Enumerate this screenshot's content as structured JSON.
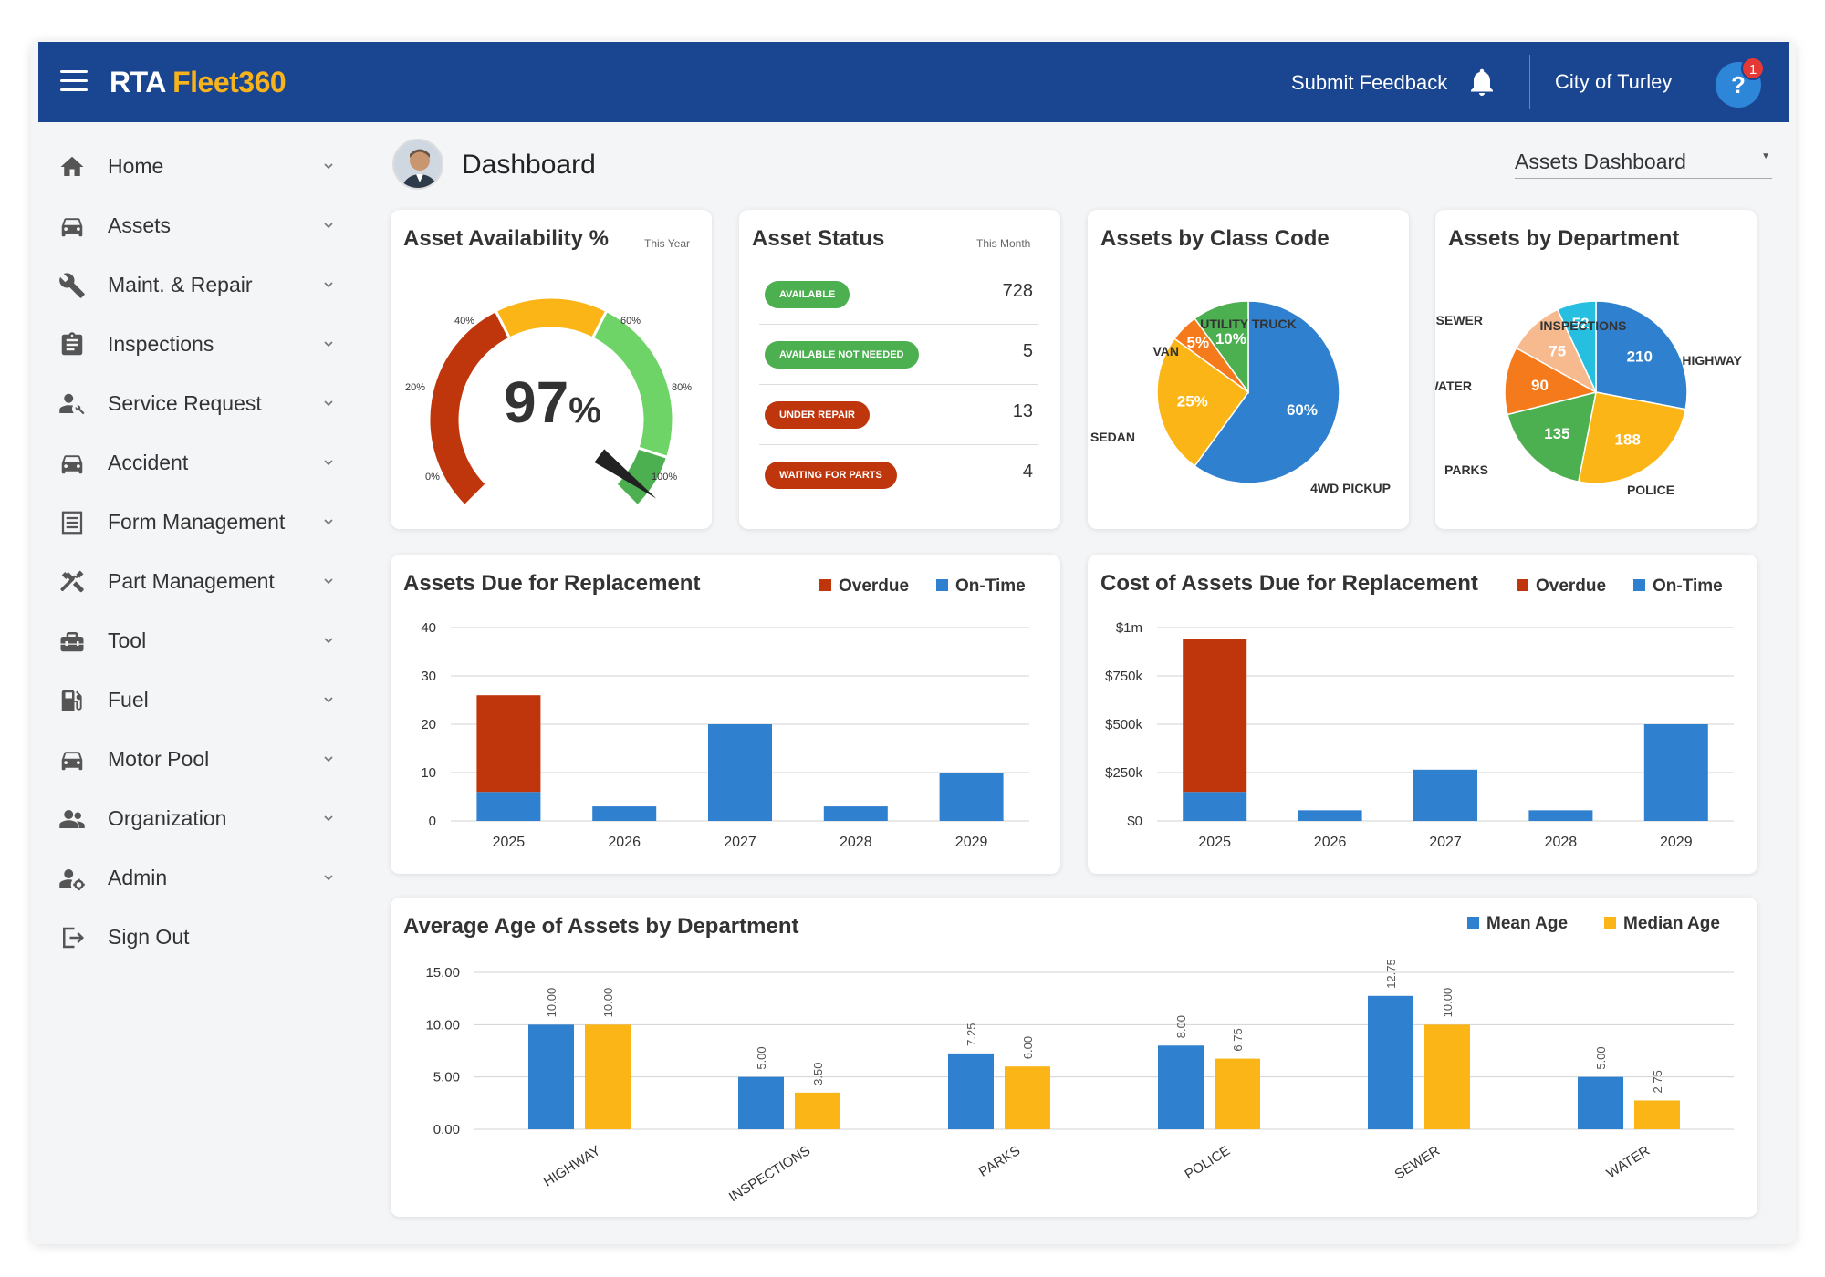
{
  "header": {
    "logo_part1": "RTA ",
    "logo_part2": "Fleet360",
    "feedback": "Submit Feedback",
    "org": "City of Turley",
    "help_glyph": "?",
    "notification_count": "1"
  },
  "sidebar": {
    "items": [
      {
        "label": "Home",
        "icon": "home-icon"
      },
      {
        "label": "Assets",
        "icon": "car-icon"
      },
      {
        "label": "Maint. & Repair",
        "icon": "wrench-icon"
      },
      {
        "label": "Inspections",
        "icon": "clipboard-icon"
      },
      {
        "label": "Service Request",
        "icon": "person-wrench-icon"
      },
      {
        "label": "Accident",
        "icon": "car-icon"
      },
      {
        "label": "Form Management",
        "icon": "form-icon"
      },
      {
        "label": "Part Management",
        "icon": "tools-icon"
      },
      {
        "label": "Tool",
        "icon": "toolbox-icon"
      },
      {
        "label": "Fuel",
        "icon": "fuel-icon"
      },
      {
        "label": "Motor Pool",
        "icon": "car-icon"
      },
      {
        "label": "Organization",
        "icon": "people-icon"
      },
      {
        "label": "Admin",
        "icon": "admin-icon"
      },
      {
        "label": "Sign Out",
        "icon": "sign-out-icon"
      }
    ]
  },
  "page": {
    "title": "Dashboard",
    "dashboard_select": "Assets Dashboard"
  },
  "availability": {
    "title": "Asset Availability %",
    "period": "This Year",
    "value": "97",
    "unit": "%",
    "value_number": 97,
    "ticks": [
      "0%",
      "20%",
      "40%",
      "60%",
      "80%",
      "100%"
    ]
  },
  "status": {
    "title": "Asset Status",
    "period": "This Month",
    "rows": [
      {
        "label": "AVAILABLE",
        "count": "728",
        "color": "#4caf50"
      },
      {
        "label": "AVAILABLE NOT NEEDED",
        "count": "5",
        "color": "#4caf50"
      },
      {
        "label": "UNDER REPAIR",
        "count": "13",
        "color": "#c0360c"
      },
      {
        "label": "WAITING FOR PARTS",
        "count": "4",
        "color": "#c0360c"
      }
    ]
  },
  "chart_data": [
    {
      "id": "class-code",
      "type": "pie",
      "title": "Assets by Class Code",
      "slices": [
        {
          "label": "4WD PICKUP",
          "value": 60,
          "display": "60%",
          "color": "#2f80cf"
        },
        {
          "label": "SEDAN",
          "value": 25,
          "display": "25%",
          "color": "#fbb516"
        },
        {
          "label": "VAN",
          "value": 5,
          "display": "5%",
          "color": "#f57a1c"
        },
        {
          "label": "UTILITY TRUCK",
          "value": 10,
          "display": "10%",
          "color": "#4caf50"
        }
      ]
    },
    {
      "id": "department",
      "type": "pie",
      "title": "Assets by Department",
      "slices": [
        {
          "label": "HIGHWAY",
          "value": 210,
          "display": "210",
          "color": "#2f80cf"
        },
        {
          "label": "POLICE",
          "value": 188,
          "display": "188",
          "color": "#fbb516"
        },
        {
          "label": "PARKS",
          "value": 135,
          "display": "135",
          "color": "#4caf50"
        },
        {
          "label": "WATER",
          "value": 90,
          "display": "90",
          "color": "#f57a1c"
        },
        {
          "label": "SEWER",
          "value": 75,
          "display": "75",
          "color": "#f7b98e"
        },
        {
          "label": "INSPECTIONS",
          "value": 52,
          "display": "52",
          "color": "#27bfe0"
        }
      ]
    },
    {
      "id": "due-replacement",
      "type": "bar",
      "title": "Assets Due for Replacement",
      "categories": [
        "2025",
        "2026",
        "2027",
        "2028",
        "2029"
      ],
      "series": [
        {
          "name": "On-Time",
          "values": [
            6,
            3,
            20,
            3,
            10
          ],
          "color": "#2f80cf"
        },
        {
          "name": "Overdue",
          "values": [
            20,
            0,
            0,
            0,
            0
          ],
          "color": "#c0360c"
        }
      ],
      "stacked": true,
      "ylim": [
        0,
        40
      ],
      "yticks": [
        0,
        10,
        20,
        30,
        40
      ],
      "ytick_labels": [
        "0",
        "10",
        "20",
        "30",
        "40"
      ],
      "legend": [
        "Overdue",
        "On-Time"
      ]
    },
    {
      "id": "cost-replacement",
      "type": "bar",
      "title": "Cost of Assets Due for Replacement",
      "categories": [
        "2025",
        "2026",
        "2027",
        "2028",
        "2029"
      ],
      "series": [
        {
          "name": "On-Time",
          "values": [
            150000,
            55000,
            265000,
            55000,
            500000
          ],
          "color": "#2f80cf"
        },
        {
          "name": "Overdue",
          "values": [
            790000,
            0,
            0,
            0,
            0
          ],
          "color": "#c0360c"
        }
      ],
      "stacked": true,
      "ylim": [
        0,
        1000000
      ],
      "yticks": [
        0,
        250000,
        500000,
        750000,
        1000000
      ],
      "ytick_labels": [
        "$0",
        "$250k",
        "$500k",
        "$750k",
        "$1m"
      ],
      "legend": [
        "Overdue",
        "On-Time"
      ]
    },
    {
      "id": "avg-age",
      "type": "bar",
      "title": "Average Age of Assets by Department",
      "categories": [
        "HIGHWAY",
        "INSPECTIONS",
        "PARKS",
        "POLICE",
        "SEWER",
        "WATER"
      ],
      "series": [
        {
          "name": "Mean Age",
          "values": [
            10.0,
            5.0,
            7.25,
            8.0,
            12.75,
            5.0
          ],
          "labels": [
            "10.00",
            "5.00",
            "7.25",
            "8.00",
            "12.75",
            "5.00"
          ],
          "color": "#2f80cf"
        },
        {
          "name": "Median Age",
          "values": [
            10.0,
            3.5,
            6.0,
            6.75,
            10.0,
            2.75
          ],
          "labels": [
            "10.00",
            "3.50",
            "6.00",
            "6.75",
            "10.00",
            "2.75"
          ],
          "color": "#fbb516"
        }
      ],
      "stacked": false,
      "ylim": [
        0,
        15
      ],
      "yticks": [
        0,
        5,
        10,
        15
      ],
      "ytick_labels": [
        "0.00",
        "5.00",
        "10.00",
        "15.00"
      ],
      "legend": [
        "Mean Age",
        "Median Age"
      ]
    }
  ]
}
